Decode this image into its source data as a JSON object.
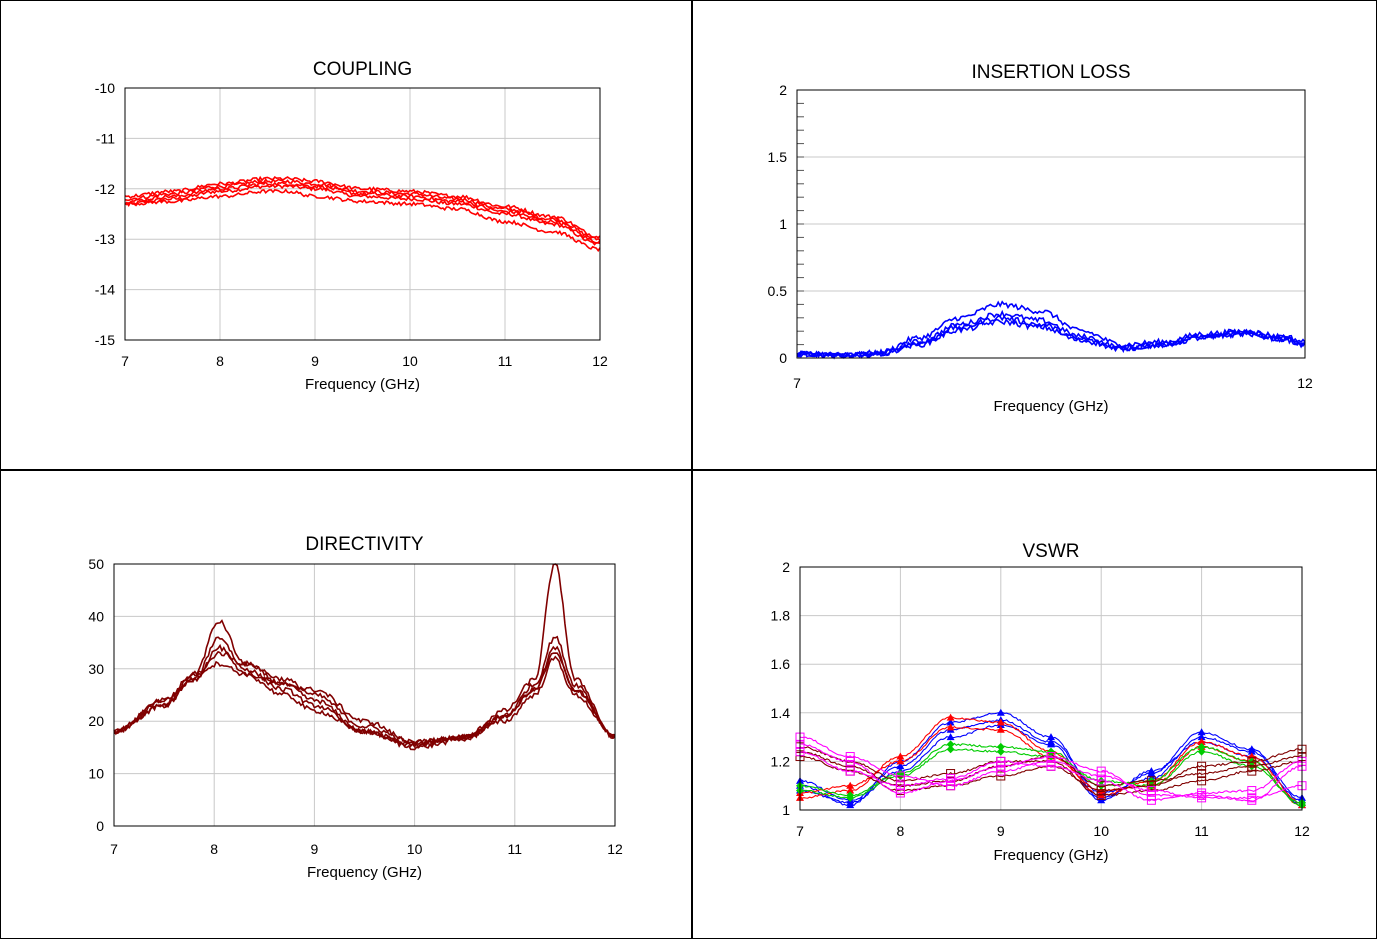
{
  "chart_data": [
    {
      "id": "coupling",
      "type": "line",
      "title": "COUPLING",
      "xlabel": "Frequency (GHz)",
      "ylabel": "",
      "xlim": [
        7,
        12
      ],
      "ylim": [
        -15,
        -10
      ],
      "xticks": [
        7,
        8,
        9,
        10,
        11,
        12
      ],
      "xtick_labels": [
        "7",
        "8",
        "9",
        "10",
        "11",
        "12"
      ],
      "yticks": [
        -15,
        -14,
        -13,
        -12,
        -11,
        -10
      ],
      "ytick_labels": [
        "-15",
        "-14",
        "-13",
        "-12",
        "-11",
        "-10"
      ],
      "grid": true,
      "minor_y_ticks": false,
      "color": "#ff0000",
      "noise": 0.035,
      "series": [
        {
          "x": [
            7,
            7.5,
            8,
            8.5,
            8.7,
            9,
            9.5,
            10,
            10.5,
            11,
            11.5,
            12
          ],
          "y": [
            -12.3,
            -12.2,
            -12.05,
            -11.95,
            -11.95,
            -12.0,
            -12.15,
            -12.2,
            -12.3,
            -12.5,
            -12.7,
            -13.1
          ]
        },
        {
          "x": [
            7,
            7.5,
            8,
            8.5,
            8.7,
            9,
            9.5,
            10,
            10.5,
            11,
            11.5,
            12
          ],
          "y": [
            -12.2,
            -12.1,
            -11.95,
            -11.85,
            -11.85,
            -11.9,
            -12.05,
            -12.1,
            -12.2,
            -12.4,
            -12.6,
            -13.0
          ]
        },
        {
          "x": [
            7,
            7.5,
            8,
            8.5,
            8.7,
            9,
            9.5,
            10,
            10.5,
            11,
            11.5,
            12
          ],
          "y": [
            -12.15,
            -12.05,
            -11.9,
            -11.8,
            -11.8,
            -11.85,
            -12.0,
            -12.05,
            -12.15,
            -12.35,
            -12.55,
            -12.95
          ]
        },
        {
          "x": [
            7,
            7.5,
            8,
            8.5,
            8.7,
            9,
            9.5,
            10,
            10.5,
            11,
            11.5,
            12
          ],
          "y": [
            -12.25,
            -12.15,
            -12.0,
            -11.9,
            -11.9,
            -11.95,
            -12.1,
            -12.15,
            -12.25,
            -12.45,
            -12.65,
            -13.05
          ]
        },
        {
          "x": [
            7,
            7.5,
            8,
            8.5,
            8.7,
            9,
            9.5,
            10,
            10.5,
            11,
            11.5,
            12
          ],
          "y": [
            -12.3,
            -12.25,
            -12.15,
            -12.05,
            -12.05,
            -12.15,
            -12.25,
            -12.3,
            -12.4,
            -12.65,
            -12.85,
            -13.2
          ]
        }
      ]
    },
    {
      "id": "insertion-loss",
      "type": "line",
      "title": "INSERTION LOSS",
      "xlabel": "Frequency (GHz)",
      "ylabel": "",
      "xlim": [
        7,
        12
      ],
      "ylim": [
        0,
        2
      ],
      "xticks": [
        7,
        12
      ],
      "xtick_labels": [
        "7",
        "12"
      ],
      "yticks": [
        0,
        0.5,
        1,
        1.5,
        2
      ],
      "ytick_labels": [
        "0",
        "0.5",
        "1",
        "1.5",
        "2"
      ],
      "grid": true,
      "minor_y_ticks": true,
      "color": "#0000ff",
      "noise": 0.02,
      "series": [
        {
          "x": [
            7,
            7.5,
            7.8,
            8.2,
            8.6,
            9.0,
            9.4,
            9.8,
            10.2,
            10.6,
            11.0,
            11.4,
            11.8,
            12
          ],
          "y": [
            0.03,
            0.02,
            0.04,
            0.15,
            0.3,
            0.4,
            0.35,
            0.2,
            0.1,
            0.12,
            0.18,
            0.2,
            0.16,
            0.12
          ]
        },
        {
          "x": [
            7,
            7.5,
            7.8,
            8.2,
            8.6,
            9.0,
            9.4,
            9.8,
            10.2,
            10.6,
            11.0,
            11.4,
            11.8,
            12
          ],
          "y": [
            0.03,
            0.02,
            0.03,
            0.12,
            0.25,
            0.33,
            0.28,
            0.16,
            0.08,
            0.1,
            0.17,
            0.19,
            0.15,
            0.1
          ]
        },
        {
          "x": [
            7,
            7.5,
            7.8,
            8.2,
            8.6,
            9.0,
            9.4,
            9.8,
            10.2,
            10.6,
            11.0,
            11.4,
            11.8,
            12
          ],
          "y": [
            0.03,
            0.02,
            0.03,
            0.11,
            0.23,
            0.3,
            0.25,
            0.14,
            0.07,
            0.1,
            0.16,
            0.18,
            0.14,
            0.1
          ]
        },
        {
          "x": [
            7,
            7.5,
            7.8,
            8.2,
            8.6,
            9.0,
            9.4,
            9.8,
            10.2,
            10.6,
            11.0,
            11.4,
            11.8,
            12
          ],
          "y": [
            0.03,
            0.02,
            0.03,
            0.1,
            0.21,
            0.27,
            0.23,
            0.13,
            0.07,
            0.1,
            0.15,
            0.18,
            0.14,
            0.09
          ]
        }
      ]
    },
    {
      "id": "directivity",
      "type": "line",
      "title": "DIRECTIVITY",
      "xlabel": "Frequency (GHz)",
      "ylabel": "",
      "xlim": [
        7,
        12
      ],
      "ylim": [
        0,
        50
      ],
      "xticks": [
        7,
        8,
        9,
        10,
        11,
        12
      ],
      "xtick_labels": [
        "7",
        "8",
        "9",
        "10",
        "11",
        "12"
      ],
      "yticks": [
        0,
        10,
        20,
        30,
        40,
        50
      ],
      "ytick_labels": [
        "0",
        "10",
        "20",
        "30",
        "40",
        "50"
      ],
      "grid": true,
      "minor_y_ticks": false,
      "color": "#800000",
      "noise": 0.45,
      "series": [
        {
          "x": [
            7,
            7.5,
            7.8,
            8.05,
            8.3,
            8.7,
            9.0,
            9.5,
            10.0,
            10.5,
            10.9,
            11.2,
            11.4,
            11.6,
            12
          ],
          "y": [
            18,
            23,
            29,
            39,
            31,
            27,
            24,
            18,
            15.5,
            17,
            22,
            28,
            50,
            28,
            17
          ]
        },
        {
          "x": [
            7,
            7.5,
            7.8,
            8.05,
            8.3,
            8.7,
            9.0,
            9.5,
            10.0,
            10.5,
            10.9,
            11.2,
            11.4,
            11.6,
            12
          ],
          "y": [
            18,
            23,
            28,
            36,
            30,
            26,
            23,
            18,
            15.5,
            17,
            21,
            27,
            36,
            27,
            17
          ]
        },
        {
          "x": [
            7,
            7.5,
            7.8,
            8.05,
            8.3,
            8.7,
            9.0,
            9.5,
            10.0,
            10.5,
            10.9,
            11.2,
            11.4,
            11.6,
            12
          ],
          "y": [
            18,
            24,
            28,
            33,
            31,
            28,
            25,
            19,
            16,
            17,
            21,
            26,
            34,
            26,
            17
          ]
        },
        {
          "x": [
            7,
            7.5,
            7.8,
            8.05,
            8.3,
            8.7,
            9.0,
            9.5,
            10.0,
            10.5,
            10.9,
            11.2,
            11.4,
            11.6,
            12
          ],
          "y": [
            18,
            24,
            29,
            31,
            29,
            27,
            26,
            20,
            16,
            17,
            20,
            25,
            32,
            25,
            17
          ]
        },
        {
          "x": [
            7,
            7.5,
            7.8,
            8.05,
            8.3,
            8.7,
            9.0,
            9.5,
            10.0,
            10.5,
            10.9,
            11.2,
            11.4,
            11.6,
            12
          ],
          "y": [
            18,
            23,
            28,
            34,
            29,
            25,
            22,
            18,
            15,
            16.5,
            21,
            26,
            33,
            26,
            17
          ]
        }
      ]
    },
    {
      "id": "vswr",
      "type": "line",
      "title": "VSWR",
      "xlabel": "Frequency (GHz)",
      "ylabel": "",
      "xlim": [
        7,
        12
      ],
      "ylim": [
        1,
        2
      ],
      "xticks": [
        7,
        8,
        9,
        10,
        11,
        12
      ],
      "xtick_labels": [
        "7",
        "8",
        "9",
        "10",
        "11",
        "12"
      ],
      "yticks": [
        1,
        1.2,
        1.4,
        1.6,
        1.8,
        2
      ],
      "ytick_labels": [
        "1",
        "1.2",
        "1.4",
        "1.6",
        "1.8",
        "2"
      ],
      "grid": true,
      "minor_y_ticks": false,
      "noise": 0.004,
      "series": [
        {
          "color": "#0000ff",
          "marker": "triangle",
          "x": [
            7,
            7.5,
            8,
            8.5,
            9,
            9.5,
            10,
            10.5,
            11,
            11.5,
            12
          ],
          "y": [
            1.1,
            1.02,
            1.2,
            1.36,
            1.4,
            1.3,
            1.05,
            1.15,
            1.32,
            1.25,
            1.02
          ]
        },
        {
          "color": "#0000ff",
          "marker": "triangle",
          "x": [
            7,
            7.5,
            8,
            8.5,
            9,
            9.5,
            10,
            10.5,
            11,
            11.5,
            12
          ],
          "y": [
            1.12,
            1.04,
            1.18,
            1.33,
            1.37,
            1.28,
            1.07,
            1.13,
            1.3,
            1.24,
            1.05
          ]
        },
        {
          "color": "#0000ff",
          "marker": "triangle",
          "x": [
            7,
            7.5,
            8,
            8.5,
            9,
            9.5,
            10,
            10.5,
            11,
            11.5,
            12
          ],
          "y": [
            1.08,
            1.03,
            1.16,
            1.3,
            1.35,
            1.27,
            1.04,
            1.16,
            1.28,
            1.22,
            1.04
          ]
        },
        {
          "color": "#ff0000",
          "marker": "triangle",
          "x": [
            7,
            7.5,
            8,
            8.5,
            9,
            9.5,
            10,
            10.5,
            11,
            11.5,
            12
          ],
          "y": [
            1.05,
            1.08,
            1.22,
            1.38,
            1.36,
            1.24,
            1.06,
            1.12,
            1.28,
            1.22,
            1.03
          ]
        },
        {
          "color": "#ff0000",
          "marker": "triangle",
          "x": [
            7,
            7.5,
            8,
            8.5,
            9,
            9.5,
            10,
            10.5,
            11,
            11.5,
            12
          ],
          "y": [
            1.07,
            1.1,
            1.2,
            1.34,
            1.33,
            1.22,
            1.08,
            1.1,
            1.26,
            1.2,
            1.02
          ]
        },
        {
          "color": "#00cc00",
          "marker": "diamond",
          "x": [
            7,
            7.5,
            8,
            8.5,
            9,
            9.5,
            10,
            10.5,
            11,
            11.5,
            12
          ],
          "y": [
            1.1,
            1.06,
            1.15,
            1.27,
            1.26,
            1.24,
            1.1,
            1.12,
            1.26,
            1.2,
            1.02
          ]
        },
        {
          "color": "#00cc00",
          "marker": "diamond",
          "x": [
            7,
            7.5,
            8,
            8.5,
            9,
            9.5,
            10,
            10.5,
            11,
            11.5,
            12
          ],
          "y": [
            1.08,
            1.05,
            1.14,
            1.25,
            1.24,
            1.22,
            1.12,
            1.1,
            1.24,
            1.18,
            1.03
          ]
        },
        {
          "color": "#800000",
          "marker": "square",
          "x": [
            7,
            7.5,
            8,
            8.5,
            9,
            9.5,
            10,
            10.5,
            11,
            11.5,
            12
          ],
          "y": [
            1.24,
            1.18,
            1.1,
            1.12,
            1.18,
            1.22,
            1.1,
            1.12,
            1.15,
            1.18,
            1.22
          ]
        },
        {
          "color": "#800000",
          "marker": "square",
          "x": [
            7,
            7.5,
            8,
            8.5,
            9,
            9.5,
            10,
            10.5,
            11,
            11.5,
            12
          ],
          "y": [
            1.22,
            1.16,
            1.08,
            1.1,
            1.14,
            1.18,
            1.08,
            1.1,
            1.18,
            1.2,
            1.25
          ]
        },
        {
          "color": "#800000",
          "marker": "square",
          "x": [
            7,
            7.5,
            8,
            8.5,
            9,
            9.5,
            10,
            10.5,
            11,
            11.5,
            12
          ],
          "y": [
            1.26,
            1.2,
            1.12,
            1.15,
            1.2,
            1.2,
            1.06,
            1.08,
            1.12,
            1.16,
            1.2
          ]
        },
        {
          "color": "#ff00ff",
          "marker": "square",
          "x": [
            7,
            7.5,
            8,
            8.5,
            9,
            9.5,
            10,
            10.5,
            11,
            11.5,
            12
          ],
          "y": [
            1.3,
            1.22,
            1.14,
            1.1,
            1.16,
            1.2,
            1.14,
            1.08,
            1.05,
            1.05,
            1.1
          ]
        },
        {
          "color": "#ff00ff",
          "marker": "square",
          "x": [
            7,
            7.5,
            8,
            8.5,
            9,
            9.5,
            10,
            10.5,
            11,
            11.5,
            12
          ],
          "y": [
            1.27,
            1.2,
            1.07,
            1.12,
            1.18,
            1.22,
            1.16,
            1.06,
            1.06,
            1.04,
            1.18
          ]
        },
        {
          "color": "#ff00ff",
          "marker": "square",
          "x": [
            7,
            7.5,
            8,
            8.5,
            9,
            9.5,
            10,
            10.5,
            11,
            11.5,
            12
          ],
          "y": [
            1.24,
            1.16,
            1.1,
            1.13,
            1.2,
            1.18,
            1.12,
            1.04,
            1.07,
            1.08,
            1.2
          ]
        }
      ]
    }
  ]
}
